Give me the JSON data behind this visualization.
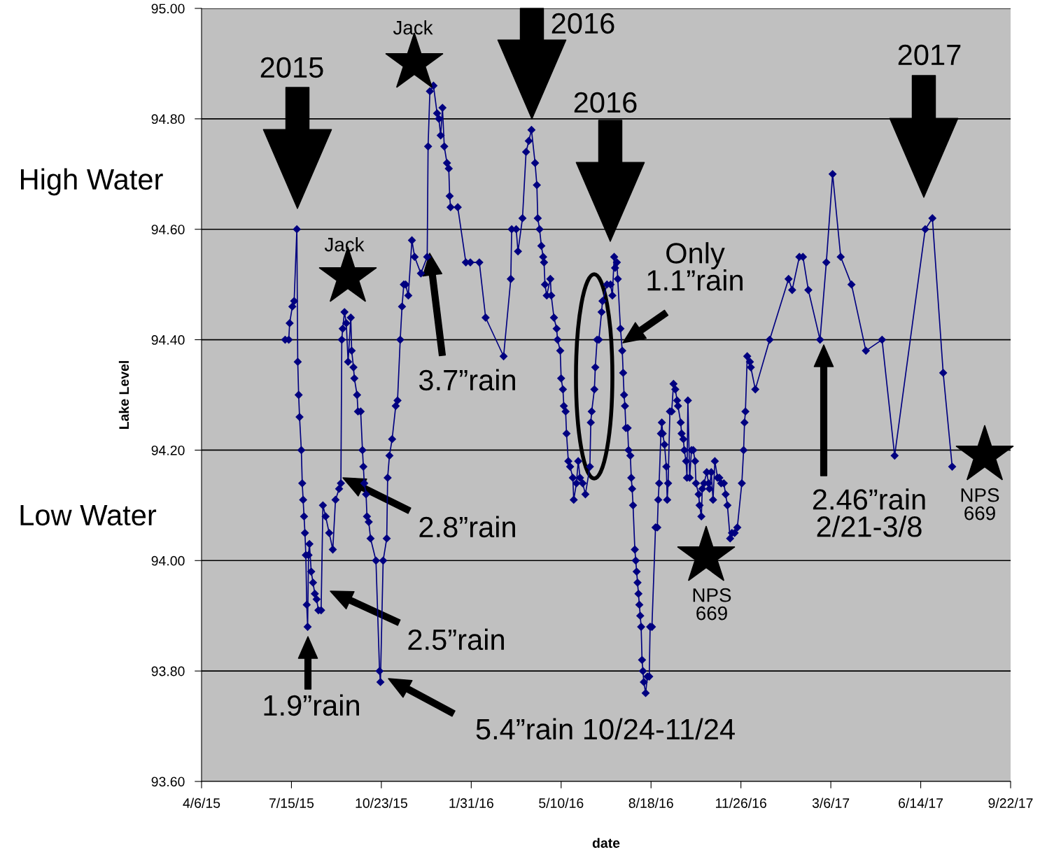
{
  "chart_data": {
    "type": "line",
    "xlabel": "date",
    "ylabel": "Lake Level",
    "color": "#000080",
    "marker": "diamond",
    "line_style": "solid",
    "grid": "y",
    "legend": false,
    "x": [
      "2015-07-08",
      "2015-07-12",
      "2015-07-13",
      "2015-07-16",
      "2015-07-18",
      "2015-07-21",
      "2015-07-22",
      "2015-07-23",
      "2015-07-24",
      "2015-07-26",
      "2015-07-27",
      "2015-07-28",
      "2015-07-29",
      "2015-07-30",
      "2015-07-31",
      "2015-08-01",
      "2015-08-02",
      "2015-08-03",
      "2015-08-04",
      "2015-08-06",
      "2015-08-08",
      "2015-08-10",
      "2015-08-12",
      "2015-08-14",
      "2015-08-17",
      "2015-08-19",
      "2015-08-22",
      "2015-08-26",
      "2015-08-30",
      "2015-09-02",
      "2015-09-06",
      "2015-09-08",
      "2015-09-09",
      "2015-09-10",
      "2015-09-12",
      "2015-09-14",
      "2015-09-16",
      "2015-09-19",
      "2015-09-20",
      "2015-09-22",
      "2015-09-23",
      "2015-09-26",
      "2015-09-27",
      "2015-09-30",
      "2015-10-02",
      "2015-10-03",
      "2015-10-04",
      "2015-10-06",
      "2015-10-07",
      "2015-10-09",
      "2015-10-11",
      "2015-10-17",
      "2015-10-21",
      "2015-10-22",
      "2015-10-25",
      "2015-10-29",
      "2015-10-30",
      "2015-11-01",
      "2015-11-04",
      "2015-11-08",
      "2015-11-10",
      "2015-11-13",
      "2015-11-15",
      "2015-11-17",
      "2015-11-19",
      "2015-11-22",
      "2015-11-26",
      "2015-11-29",
      "2015-12-06",
      "2015-12-13",
      "2015-12-14",
      "2015-12-16",
      "2015-12-20",
      "2015-12-24",
      "2015-12-26",
      "2015-12-28",
      "2015-12-30",
      "2016-01-01",
      "2016-01-04",
      "2016-01-06",
      "2016-01-07",
      "2016-01-08",
      "2016-01-16",
      "2016-01-25",
      "2016-01-30",
      "2016-02-09",
      "2016-02-16",
      "2016-03-07",
      "2016-03-15",
      "2016-03-16",
      "2016-03-21",
      "2016-03-23",
      "2016-03-28",
      "2016-04-01",
      "2016-04-04",
      "2016-04-07",
      "2016-04-11",
      "2016-04-13",
      "2016-04-14",
      "2016-04-16",
      "2016-04-18",
      "2016-04-20",
      "2016-04-21",
      "2016-04-22",
      "2016-04-24",
      "2016-04-28",
      "2016-04-29",
      "2016-05-02",
      "2016-05-05",
      "2016-05-06",
      "2016-05-09",
      "2016-05-10",
      "2016-05-12",
      "2016-05-13",
      "2016-05-15",
      "2016-05-16",
      "2016-05-18",
      "2016-05-20",
      "2016-05-23",
      "2016-05-24",
      "2016-05-27",
      "2016-05-29",
      "2016-05-31",
      "2016-06-03",
      "2016-06-06",
      "2016-06-11",
      "2016-06-12",
      "2016-06-13",
      "2016-06-16",
      "2016-06-17",
      "2016-06-19",
      "2016-06-21",
      "2016-06-24",
      "2016-06-25",
      "2016-06-30",
      "2016-07-04",
      "2016-07-06",
      "2016-07-08",
      "2016-07-09",
      "2016-07-11",
      "2016-07-12",
      "2016-07-15",
      "2016-07-17",
      "2016-07-18",
      "2016-07-19",
      "2016-07-20",
      "2016-07-21",
      "2016-07-23",
      "2016-07-24",
      "2016-07-26",
      "2016-07-27",
      "2016-07-28",
      "2016-07-29",
      "2016-07-31",
      "2016-08-01",
      "2016-08-02",
      "2016-08-03",
      "2016-08-04",
      "2016-08-05",
      "2016-08-06",
      "2016-08-07",
      "2016-08-08",
      "2016-08-09",
      "2016-08-10",
      "2016-08-12",
      "2016-08-14",
      "2016-08-16",
      "2016-08-17",
      "2016-08-19",
      "2016-08-23",
      "2016-08-25",
      "2016-08-26",
      "2016-08-27",
      "2016-08-29",
      "2016-08-30",
      "2016-08-31",
      "2016-09-02",
      "2016-09-04",
      "2016-09-05",
      "2016-09-06",
      "2016-09-08",
      "2016-09-10",
      "2016-09-12",
      "2016-09-14",
      "2016-09-16",
      "2016-09-17",
      "2016-09-20",
      "2016-09-21",
      "2016-09-23",
      "2016-09-24",
      "2016-09-26",
      "2016-09-27",
      "2016-09-28",
      "2016-09-30",
      "2016-10-02",
      "2016-10-04",
      "2016-10-06",
      "2016-10-07",
      "2016-10-10",
      "2016-10-11",
      "2016-10-13",
      "2016-10-14",
      "2016-10-16",
      "2016-10-19",
      "2016-10-21",
      "2016-10-22",
      "2016-10-24",
      "2016-10-26",
      "2016-10-28",
      "2016-10-31",
      "2016-11-02",
      "2016-11-04",
      "2016-11-07",
      "2016-11-09",
      "2016-11-11",
      "2016-11-14",
      "2016-11-16",
      "2016-11-19",
      "2016-11-22",
      "2016-11-27",
      "2016-11-29",
      "2016-11-30",
      "2016-12-01",
      "2016-12-03",
      "2016-12-06",
      "2016-12-07",
      "2016-12-12",
      "2016-12-28",
      "2017-01-18",
      "2017-01-22",
      "2017-01-30",
      "2017-02-03",
      "2017-02-09",
      "2017-02-22",
      "2017-03-01",
      "2017-03-08",
      "2017-03-17",
      "2017-03-29",
      "2017-04-14",
      "2017-05-02",
      "2017-05-16",
      "2017-06-19",
      "2017-06-27",
      "2017-07-09",
      "2017-07-19"
    ],
    "values": [
      94.4,
      94.4,
      94.43,
      94.46,
      94.47,
      94.6,
      94.36,
      94.3,
      94.26,
      94.2,
      94.14,
      94.11,
      94.08,
      94.05,
      94.01,
      93.92,
      93.88,
      94.01,
      94.03,
      93.98,
      93.96,
      93.94,
      93.93,
      93.91,
      93.91,
      94.1,
      94.08,
      94.05,
      94.02,
      94.11,
      94.13,
      94.14,
      94.4,
      94.42,
      94.45,
      94.43,
      94.36,
      94.44,
      94.38,
      94.35,
      94.33,
      94.3,
      94.27,
      94.27,
      94.2,
      94.17,
      94.14,
      94.12,
      94.08,
      94.07,
      94.04,
      94.0,
      93.8,
      93.78,
      94.0,
      94.04,
      94.15,
      94.19,
      94.22,
      94.28,
      94.29,
      94.4,
      94.46,
      94.5,
      94.5,
      94.48,
      94.58,
      94.55,
      94.52,
      94.55,
      94.75,
      94.85,
      94.86,
      94.81,
      94.8,
      94.77,
      94.82,
      94.75,
      94.72,
      94.71,
      94.66,
      94.64,
      94.64,
      94.54,
      94.54,
      94.54,
      94.44,
      94.37,
      94.51,
      94.6,
      94.6,
      94.56,
      94.62,
      94.74,
      94.76,
      94.78,
      94.72,
      94.68,
      94.62,
      94.6,
      94.57,
      94.55,
      94.54,
      94.5,
      94.48,
      94.51,
      94.48,
      94.44,
      94.42,
      94.4,
      94.38,
      94.33,
      94.31,
      94.28,
      94.27,
      94.23,
      94.18,
      94.17,
      94.15,
      94.11,
      94.14,
      94.18,
      94.15,
      94.14,
      94.12,
      94.17,
      94.25,
      94.27,
      94.31,
      94.35,
      94.4,
      94.4,
      94.45,
      94.47,
      94.5,
      94.5,
      94.48,
      94.55,
      94.53,
      94.54,
      94.51,
      94.42,
      94.38,
      94.34,
      94.3,
      94.28,
      94.24,
      94.24,
      94.2,
      94.19,
      94.15,
      94.13,
      94.1,
      94.02,
      94.0,
      93.98,
      93.96,
      93.94,
      93.92,
      93.9,
      93.88,
      93.82,
      93.8,
      93.78,
      93.76,
      93.79,
      93.79,
      93.88,
      93.88,
      94.06,
      94.06,
      94.11,
      94.14,
      94.23,
      94.25,
      94.23,
      94.21,
      94.17,
      94.11,
      94.14,
      94.27,
      94.27,
      94.32,
      94.31,
      94.29,
      94.28,
      94.25,
      94.23,
      94.22,
      94.2,
      94.18,
      94.15,
      94.29,
      94.15,
      94.2,
      94.2,
      94.18,
      94.14,
      94.12,
      94.1,
      94.08,
      94.13,
      94.14,
      94.16,
      94.14,
      94.13,
      94.16,
      94.11,
      94.18,
      94.15,
      94.15,
      94.14,
      94.14,
      94.12,
      94.1,
      94.04,
      94.05,
      94.05,
      94.06,
      94.14,
      94.2,
      94.25,
      94.27,
      94.37,
      94.36,
      94.35,
      94.31,
      94.4,
      94.51,
      94.49,
      94.55,
      94.55,
      94.49,
      94.4,
      94.54,
      94.7,
      94.55,
      94.5,
      94.38,
      94.4,
      94.19,
      94.6,
      94.62,
      94.34,
      94.17
    ],
    "xlim": [
      "2015-04-06",
      "2017-09-22"
    ],
    "xticks": [
      {
        "value": "2015-04-06",
        "label": "4/6/15"
      },
      {
        "value": "2015-07-15",
        "label": "7/15/15"
      },
      {
        "value": "2015-10-23",
        "label": "10/23/15"
      },
      {
        "value": "2016-01-31",
        "label": "1/31/16"
      },
      {
        "value": "2016-05-10",
        "label": "5/10/16"
      },
      {
        "value": "2016-08-18",
        "label": "8/18/16"
      },
      {
        "value": "2016-11-26",
        "label": "11/26/16"
      },
      {
        "value": "2017-03-06",
        "label": "3/6/17"
      },
      {
        "value": "2017-06-14",
        "label": "6/14/17"
      },
      {
        "value": "2017-09-22",
        "label": "9/22/17"
      }
    ],
    "ylim": [
      93.6,
      95.0
    ],
    "yticks": [
      {
        "value": 93.6,
        "label": "93.60"
      },
      {
        "value": 93.8,
        "label": "93.80"
      },
      {
        "value": 94.0,
        "label": "94.00"
      },
      {
        "value": 94.2,
        "label": "94.20"
      },
      {
        "value": 94.4,
        "label": "94.40"
      },
      {
        "value": 94.6,
        "label": "94.60"
      },
      {
        "value": 94.8,
        "label": "94.80"
      },
      {
        "value": 95.0,
        "label": "95.00"
      }
    ],
    "annotations": [
      "2015",
      "2016",
      "2016",
      "2017",
      "3.7”rain",
      "2.8”rain",
      "2.5”rain",
      "1.9”rain",
      "5.4”rain 10/24-11/24",
      "Only\n1.1”rain",
      "2.46”rain\n2/21-3/8",
      "High Water",
      "Low Water",
      "Jack",
      "Jack",
      "NPS\n669",
      "NPS\n669"
    ]
  }
}
